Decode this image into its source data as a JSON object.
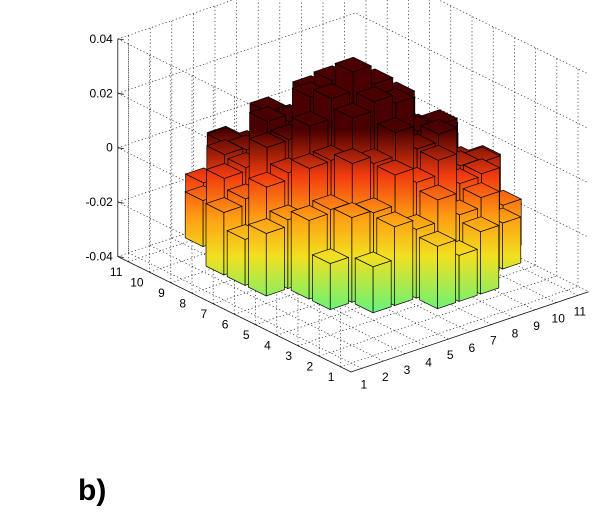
{
  "chart_data": {
    "type": "bar3",
    "panel_label": "b)",
    "x_ticks": [
      "1",
      "2",
      "3",
      "4",
      "5",
      "6",
      "7",
      "8",
      "9",
      "10",
      "11"
    ],
    "y_ticks": [
      "1",
      "2",
      "3",
      "4",
      "5",
      "6",
      "7",
      "8",
      "9",
      "10",
      "11"
    ],
    "z_ticks": [
      "0.04",
      "0.02",
      "0",
      "-0.02",
      "-0.04"
    ],
    "zlim": [
      -0.04,
      0.04
    ],
    "grid": true,
    "colormap": [
      "#30f0ff",
      "#7cf06a",
      "#f2e020",
      "#ff9e14",
      "#f23c10",
      "#4a0000"
    ],
    "value_model": {
      "center": [
        6,
        6
      ],
      "peak": 0.033,
      "ring_radius": 2.3,
      "ring_value": 0.012,
      "edge_value": -0.012,
      "extent_radius": 5.2
    }
  }
}
